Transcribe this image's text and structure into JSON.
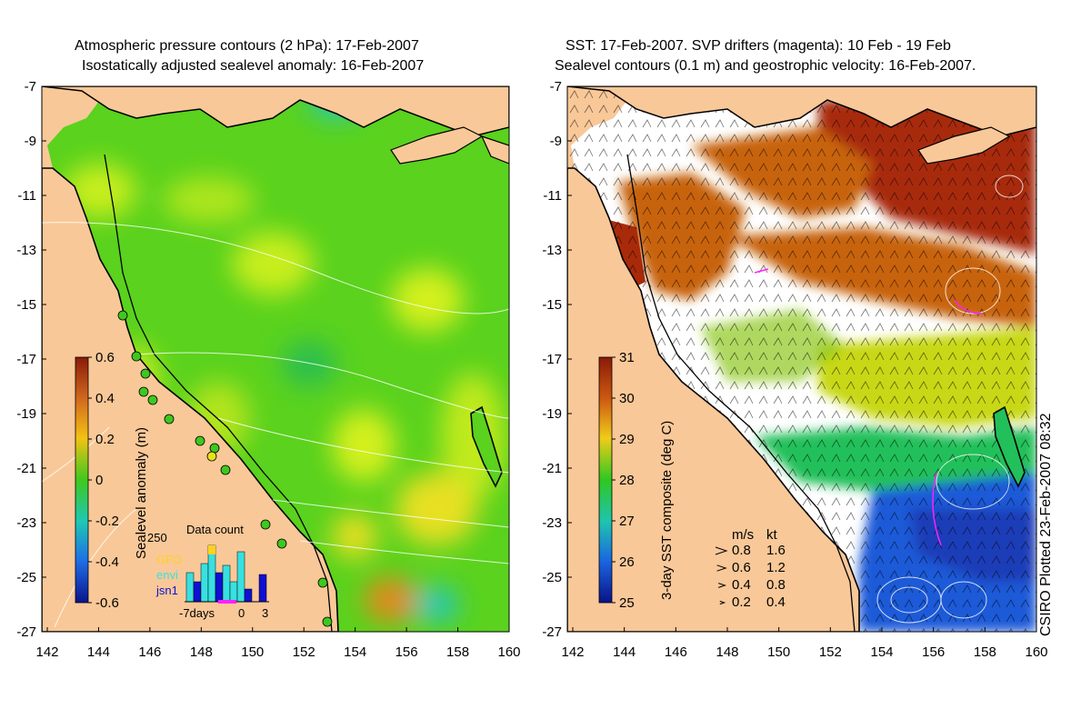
{
  "left_panel": {
    "title_line1": "Atmospheric pressure contours (2 hPa): 17-Feb-2007",
    "title_line2": "Isostatically adjusted sealevel anomaly: 16-Feb-2007",
    "colorbar_label": "Sealevel anomaly (m)",
    "colorbar_ticks": [
      "0.6",
      "0.4",
      "0.2",
      "0",
      "-0.2",
      "-0.4",
      "-0.6"
    ],
    "inset": {
      "title": "Data count",
      "ymax_label": "250",
      "legend": [
        {
          "label": "GFO",
          "color": "#ffd21f"
        },
        {
          "label": "envi",
          "color": "#38e0e0"
        },
        {
          "label": "jsn1",
          "color": "#1010d0"
        }
      ],
      "xlabel_left": "-7days",
      "xlabel_mid": "0",
      "xlabel_right": "3"
    }
  },
  "right_panel": {
    "title_line1": "SST: 17-Feb-2007. SVP drifters (magenta): 10 Feb - 19 Feb",
    "title_line2": "Sealevel contours (0.1 m) and geostrophic velocity: 16-Feb-2007.",
    "colorbar_label": "3-day SST composite (deg C)",
    "colorbar_ticks": [
      "31",
      "30",
      "29",
      "28",
      "27",
      "26",
      "25"
    ],
    "velocity_legend": {
      "header_ms": "m/s",
      "header_kt": "kt",
      "rows": [
        {
          "ms": "0.8",
          "kt": "1.6"
        },
        {
          "ms": "0.6",
          "kt": "1.2"
        },
        {
          "ms": "0.4",
          "kt": "0.8"
        },
        {
          "ms": "0.2",
          "kt": "0.4"
        }
      ]
    }
  },
  "axes": {
    "lat_ticks": [
      "-7",
      "-9",
      "-11",
      "-13",
      "-15",
      "-17",
      "-19",
      "-21",
      "-23",
      "-25",
      "-27"
    ],
    "lon_ticks": [
      "142",
      "144",
      "146",
      "148",
      "150",
      "152",
      "154",
      "156",
      "158",
      "160"
    ]
  },
  "credit": "CSIRO Plotted 23-Feb-2007 08:32",
  "colors": {
    "land": "#f9c898",
    "coast": "#000000"
  }
}
